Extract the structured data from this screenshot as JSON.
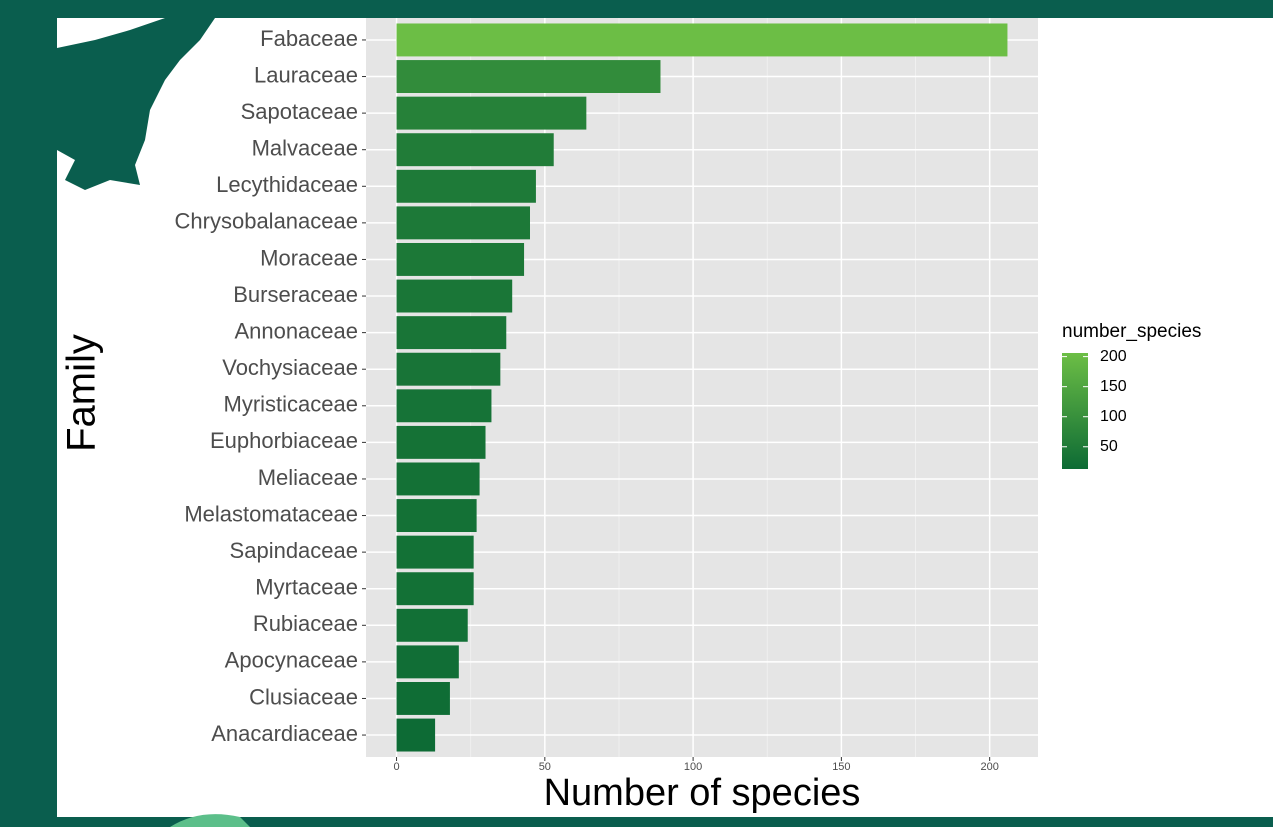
{
  "chart_data": {
    "type": "bar",
    "orientation": "horizontal",
    "x_label": "Number of species",
    "y_label": "Family",
    "categories": [
      "Fabaceae",
      "Lauraceae",
      "Sapotaceae",
      "Malvaceae",
      "Lecythidaceae",
      "Chrysobalanaceae",
      "Moraceae",
      "Burseraceae",
      "Annonaceae",
      "Vochysiaceae",
      "Myristicaceae",
      "Euphorbiaceae",
      "Meliaceae",
      "Melastomataceae",
      "Sapindaceae",
      "Myrtaceae",
      "Rubiaceae",
      "Apocynaceae",
      "Clusiaceae",
      "Anacardiaceae"
    ],
    "values": [
      206,
      89,
      64,
      53,
      47,
      45,
      43,
      39,
      37,
      35,
      32,
      30,
      28,
      27,
      26,
      26,
      24,
      21,
      18,
      13
    ],
    "xlim": [
      -10.3,
      216.3
    ],
    "xticks": [
      0,
      50,
      100,
      150,
      200
    ],
    "grid": true,
    "color_scale": {
      "low": "#0d6b35",
      "high": "#6cbe45"
    },
    "legend": {
      "title": "number_species",
      "ticks": [
        50,
        100,
        150,
        200
      ],
      "position": "right"
    }
  }
}
